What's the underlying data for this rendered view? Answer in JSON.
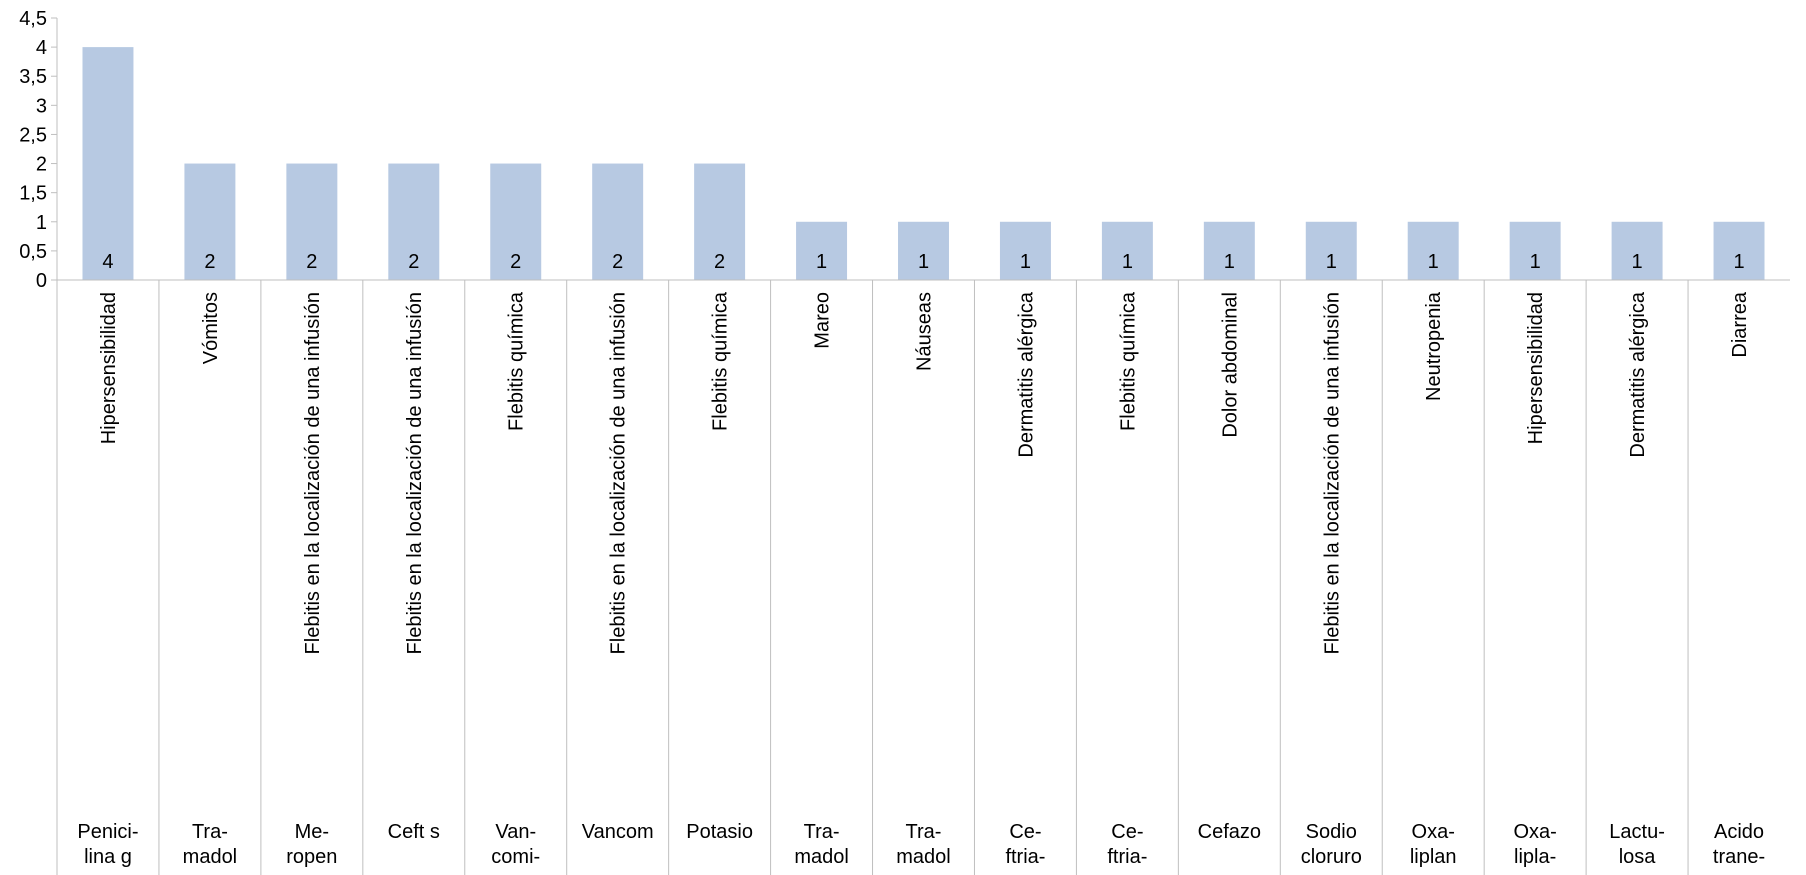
{
  "chart_data": {
    "type": "bar",
    "title": "",
    "xlabel": "",
    "ylabel": "",
    "ylim": [
      0,
      4.5
    ],
    "y_ticks": [
      "0",
      "0,5",
      "1",
      "1,5",
      "2",
      "2,5",
      "3",
      "3,5",
      "4",
      "4,5"
    ],
    "grid": false,
    "legend": "none",
    "bar_color": "#b7c9e2",
    "axis_color": "#bfbfbf",
    "categories": [
      {
        "adverse_event": "Hipersensibilidad",
        "drug": [
          "Penici-",
          "lina g"
        ]
      },
      {
        "adverse_event": "Vómitos",
        "drug": [
          "Tra-",
          "madol"
        ]
      },
      {
        "adverse_event": "Flebitis en la localización de una infusión",
        "drug": [
          "Me-",
          "ropen"
        ]
      },
      {
        "adverse_event": "Flebitis en la localización de una infusión",
        "drug": [
          "Ceft s"
        ]
      },
      {
        "adverse_event": "Flebitis química",
        "drug": [
          "Van-",
          "comi-"
        ]
      },
      {
        "adverse_event": "Flebitis en la localización de una infusión",
        "drug": [
          "Vancom"
        ]
      },
      {
        "adverse_event": "Flebitis química",
        "drug": [
          "Potasio"
        ]
      },
      {
        "adverse_event": "Mareo",
        "drug": [
          "Tra-",
          "madol"
        ]
      },
      {
        "adverse_event": "Náuseas",
        "drug": [
          "Tra-",
          "madol"
        ]
      },
      {
        "adverse_event": "Dermatitis alérgica",
        "drug": [
          "Ce-",
          "ftria-"
        ]
      },
      {
        "adverse_event": "Flebitis química",
        "drug": [
          "Ce-",
          "ftria-"
        ]
      },
      {
        "adverse_event": "Dolor abdominal",
        "drug": [
          "Cefazo"
        ]
      },
      {
        "adverse_event": "Flebitis en la localización de una infusión",
        "drug": [
          "Sodio",
          "cloruro"
        ]
      },
      {
        "adverse_event": "Neutropenia",
        "drug": [
          "Oxa-",
          "liplan"
        ]
      },
      {
        "adverse_event": "Hipersensibilidad",
        "drug": [
          "Oxa-",
          "lipla-"
        ]
      },
      {
        "adverse_event": "Dermatitis alérgica",
        "drug": [
          "Lactu-",
          "losa"
        ]
      },
      {
        "adverse_event": "Diarrea",
        "drug": [
          "Acido",
          "trane-"
        ]
      }
    ],
    "values": [
      4,
      2,
      2,
      2,
      2,
      2,
      2,
      1,
      1,
      1,
      1,
      1,
      1,
      1,
      1,
      1,
      1
    ],
    "data_labels": [
      "4",
      "2",
      "2",
      "2",
      "2",
      "2",
      "2",
      "1",
      "1",
      "1",
      "1",
      "1",
      "1",
      "1",
      "1",
      "1",
      "1"
    ]
  }
}
